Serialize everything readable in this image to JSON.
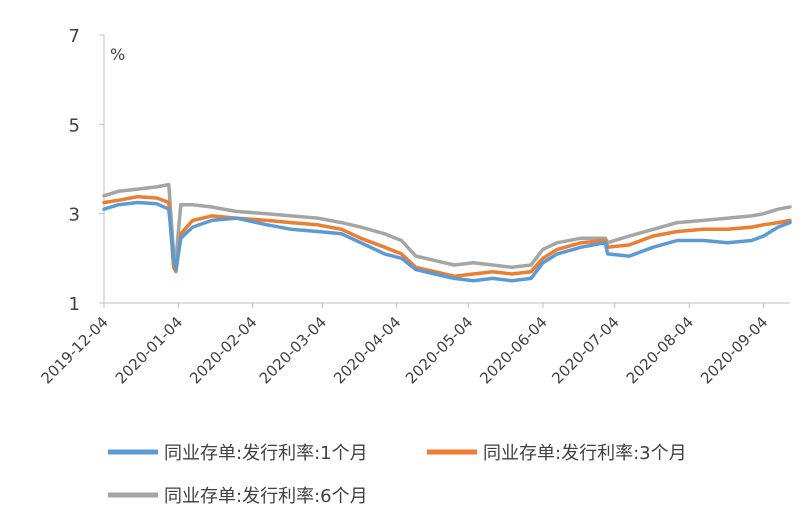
{
  "chart_data": {
    "type": "line",
    "title": "",
    "unit_label": "%",
    "xlabel": "",
    "ylabel": "",
    "ylim": [
      1,
      7
    ],
    "yticks": [
      "1",
      "3",
      "5",
      "7"
    ],
    "x_tick_labels": [
      "2019-12-04",
      "2020-01-04",
      "2020-02-04",
      "2020-03-04",
      "2020-04-04",
      "2020-05-04",
      "2020-06-04",
      "2020-07-04",
      "2020-08-04",
      "2020-09-04"
    ],
    "x_range": [
      "2019-12-04",
      "2020-09-15"
    ],
    "grid": false,
    "legend_position": "bottom",
    "series": [
      {
        "name": "同业存单:发行利率:1个月",
        "color": "#5b9bd5",
        "points": [
          [
            "2019-12-04",
            3.1
          ],
          [
            "2019-12-10",
            3.2
          ],
          [
            "2019-12-18",
            3.25
          ],
          [
            "2019-12-26",
            3.22
          ],
          [
            "2019-12-31",
            3.1
          ],
          [
            "2020-01-02",
            2.0
          ],
          [
            "2020-01-03",
            1.75
          ],
          [
            "2020-01-05",
            2.45
          ],
          [
            "2020-01-10",
            2.7
          ],
          [
            "2020-01-18",
            2.85
          ],
          [
            "2020-01-28",
            2.9
          ],
          [
            "2020-02-10",
            2.75
          ],
          [
            "2020-02-20",
            2.65
          ],
          [
            "2020-03-02",
            2.6
          ],
          [
            "2020-03-12",
            2.55
          ],
          [
            "2020-03-20",
            2.35
          ],
          [
            "2020-03-30",
            2.1
          ],
          [
            "2020-04-06",
            2.0
          ],
          [
            "2020-04-12",
            1.75
          ],
          [
            "2020-04-20",
            1.65
          ],
          [
            "2020-04-28",
            1.55
          ],
          [
            "2020-05-06",
            1.5
          ],
          [
            "2020-05-14",
            1.55
          ],
          [
            "2020-05-22",
            1.5
          ],
          [
            "2020-05-30",
            1.55
          ],
          [
            "2020-06-04",
            1.9
          ],
          [
            "2020-06-10",
            2.1
          ],
          [
            "2020-06-20",
            2.25
          ],
          [
            "2020-06-30",
            2.35
          ],
          [
            "2020-07-01",
            2.1
          ],
          [
            "2020-07-10",
            2.05
          ],
          [
            "2020-07-20",
            2.25
          ],
          [
            "2020-07-30",
            2.4
          ],
          [
            "2020-08-10",
            2.4
          ],
          [
            "2020-08-20",
            2.35
          ],
          [
            "2020-08-30",
            2.4
          ],
          [
            "2020-09-04",
            2.5
          ],
          [
            "2020-09-10",
            2.7
          ],
          [
            "2020-09-15",
            2.8
          ]
        ]
      },
      {
        "name": "同业存单:发行利率:3个月",
        "color": "#ed7d31",
        "points": [
          [
            "2019-12-04",
            3.25
          ],
          [
            "2019-12-10",
            3.3
          ],
          [
            "2019-12-18",
            3.38
          ],
          [
            "2019-12-26",
            3.35
          ],
          [
            "2019-12-31",
            3.25
          ],
          [
            "2020-01-02",
            1.8
          ],
          [
            "2020-01-03",
            1.7
          ],
          [
            "2020-01-05",
            2.55
          ],
          [
            "2020-01-10",
            2.85
          ],
          [
            "2020-01-18",
            2.95
          ],
          [
            "2020-01-28",
            2.9
          ],
          [
            "2020-02-10",
            2.85
          ],
          [
            "2020-02-20",
            2.8
          ],
          [
            "2020-03-02",
            2.75
          ],
          [
            "2020-03-12",
            2.65
          ],
          [
            "2020-03-20",
            2.45
          ],
          [
            "2020-03-30",
            2.25
          ],
          [
            "2020-04-06",
            2.1
          ],
          [
            "2020-04-12",
            1.8
          ],
          [
            "2020-04-20",
            1.7
          ],
          [
            "2020-04-28",
            1.6
          ],
          [
            "2020-05-06",
            1.65
          ],
          [
            "2020-05-14",
            1.7
          ],
          [
            "2020-05-22",
            1.65
          ],
          [
            "2020-05-30",
            1.7
          ],
          [
            "2020-06-04",
            2.0
          ],
          [
            "2020-06-10",
            2.2
          ],
          [
            "2020-06-20",
            2.35
          ],
          [
            "2020-06-30",
            2.4
          ],
          [
            "2020-07-01",
            2.25
          ],
          [
            "2020-07-10",
            2.3
          ],
          [
            "2020-07-20",
            2.5
          ],
          [
            "2020-07-30",
            2.6
          ],
          [
            "2020-08-10",
            2.65
          ],
          [
            "2020-08-20",
            2.65
          ],
          [
            "2020-08-30",
            2.7
          ],
          [
            "2020-09-04",
            2.75
          ],
          [
            "2020-09-10",
            2.8
          ],
          [
            "2020-09-15",
            2.85
          ]
        ]
      },
      {
        "name": "同业存单:发行利率:6个月",
        "color": "#a5a5a5",
        "points": [
          [
            "2019-12-04",
            3.4
          ],
          [
            "2019-12-10",
            3.5
          ],
          [
            "2019-12-18",
            3.55
          ],
          [
            "2019-12-26",
            3.6
          ],
          [
            "2019-12-31",
            3.65
          ],
          [
            "2020-01-02",
            2.1
          ],
          [
            "2020-01-03",
            2.0
          ],
          [
            "2020-01-05",
            3.2
          ],
          [
            "2020-01-10",
            3.2
          ],
          [
            "2020-01-18",
            3.15
          ],
          [
            "2020-01-28",
            3.05
          ],
          [
            "2020-02-10",
            3.0
          ],
          [
            "2020-02-20",
            2.95
          ],
          [
            "2020-03-02",
            2.9
          ],
          [
            "2020-03-12",
            2.8
          ],
          [
            "2020-03-20",
            2.7
          ],
          [
            "2020-03-30",
            2.55
          ],
          [
            "2020-04-06",
            2.4
          ],
          [
            "2020-04-12",
            2.05
          ],
          [
            "2020-04-20",
            1.95
          ],
          [
            "2020-04-28",
            1.85
          ],
          [
            "2020-05-06",
            1.9
          ],
          [
            "2020-05-14",
            1.85
          ],
          [
            "2020-05-22",
            1.8
          ],
          [
            "2020-05-30",
            1.85
          ],
          [
            "2020-06-04",
            2.2
          ],
          [
            "2020-06-10",
            2.35
          ],
          [
            "2020-06-20",
            2.45
          ],
          [
            "2020-06-30",
            2.45
          ],
          [
            "2020-07-01",
            2.35
          ],
          [
            "2020-07-10",
            2.5
          ],
          [
            "2020-07-20",
            2.65
          ],
          [
            "2020-07-30",
            2.8
          ],
          [
            "2020-08-10",
            2.85
          ],
          [
            "2020-08-20",
            2.9
          ],
          [
            "2020-08-30",
            2.95
          ],
          [
            "2020-09-04",
            3.0
          ],
          [
            "2020-09-10",
            3.1
          ],
          [
            "2020-09-15",
            3.15
          ]
        ]
      }
    ]
  }
}
